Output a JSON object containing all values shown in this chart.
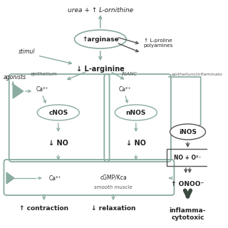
{
  "gc": "#8aaba0",
  "dc": "#555555",
  "tc": "#222222",
  "title": "urea + ↑ L-ornithine",
  "arginase": "↑arginase",
  "l_arginine": "↓ L-arginine",
  "stimul": "stimul",
  "agonists": "agonists",
  "epithelium": "epithelium",
  "inanc": "iNANC",
  "epi_inflam": "epithelium/inflammato",
  "cnos": "cNOS",
  "nnos": "nNOS",
  "inos": "iNOS",
  "no1": "↓ NO",
  "no2": "↓ NO",
  "ca1": "Ca²⁺",
  "ca2": "Ca²⁺",
  "ca3": "Ca²⁺",
  "cgmp": "cGMP/Kca",
  "smooth": "smooth muscle",
  "no_o2": "NO + O²⁻",
  "onoo": "↑ ONOO⁻",
  "inflam": "inflamma-\ncytotoxic",
  "contraction": "↑ contraction",
  "relaxation": "↓ relaxation",
  "lproline": "↑ L-proline\npolyamines"
}
